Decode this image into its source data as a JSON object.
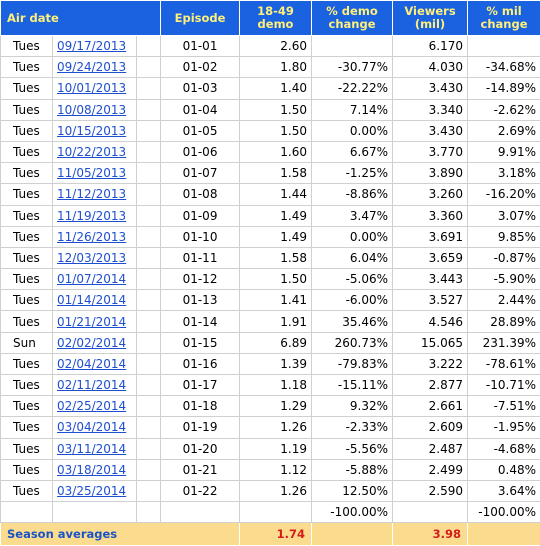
{
  "header": {
    "air_date": "Air date",
    "episode": "Episode",
    "demo_line1": "18-49",
    "demo_line2": "demo",
    "demo_change_line1": "% demo",
    "demo_change_line2": "change",
    "viewers_line1": "Viewers",
    "viewers_line2": "(mil)",
    "viewers_change_line1": "% mil",
    "viewers_change_line2": "change"
  },
  "rows": [
    {
      "day": "Tues",
      "date": "09/17/2013",
      "episode": "01-01",
      "demo": "2.60",
      "demo_change": "",
      "viewers": "6.170",
      "viewers_change": ""
    },
    {
      "day": "Tues",
      "date": "09/24/2013",
      "episode": "01-02",
      "demo": "1.80",
      "demo_change": "-30.77%",
      "viewers": "4.030",
      "viewers_change": "-34.68%"
    },
    {
      "day": "Tues",
      "date": "10/01/2013",
      "episode": "01-03",
      "demo": "1.40",
      "demo_change": "-22.22%",
      "viewers": "3.430",
      "viewers_change": "-14.89%"
    },
    {
      "day": "Tues",
      "date": "10/08/2013",
      "episode": "01-04",
      "demo": "1.50",
      "demo_change": "7.14%",
      "viewers": "3.340",
      "viewers_change": "-2.62%"
    },
    {
      "day": "Tues",
      "date": "10/15/2013",
      "episode": "01-05",
      "demo": "1.50",
      "demo_change": "0.00%",
      "viewers": "3.430",
      "viewers_change": "2.69%"
    },
    {
      "day": "Tues",
      "date": "10/22/2013",
      "episode": "01-06",
      "demo": "1.60",
      "demo_change": "6.67%",
      "viewers": "3.770",
      "viewers_change": "9.91%"
    },
    {
      "day": "Tues",
      "date": "11/05/2013",
      "episode": "01-07",
      "demo": "1.58",
      "demo_change": "-1.25%",
      "viewers": "3.890",
      "viewers_change": "3.18%"
    },
    {
      "day": "Tues",
      "date": "11/12/2013",
      "episode": "01-08",
      "demo": "1.44",
      "demo_change": "-8.86%",
      "viewers": "3.260",
      "viewers_change": "-16.20%"
    },
    {
      "day": "Tues",
      "date": "11/19/2013",
      "episode": "01-09",
      "demo": "1.49",
      "demo_change": "3.47%",
      "viewers": "3.360",
      "viewers_change": "3.07%"
    },
    {
      "day": "Tues",
      "date": "11/26/2013",
      "episode": "01-10",
      "demo": "1.49",
      "demo_change": "0.00%",
      "viewers": "3.691",
      "viewers_change": "9.85%"
    },
    {
      "day": "Tues",
      "date": "12/03/2013",
      "episode": "01-11",
      "demo": "1.58",
      "demo_change": "6.04%",
      "viewers": "3.659",
      "viewers_change": "-0.87%"
    },
    {
      "day": "Tues",
      "date": "01/07/2014",
      "episode": "01-12",
      "demo": "1.50",
      "demo_change": "-5.06%",
      "viewers": "3.443",
      "viewers_change": "-5.90%"
    },
    {
      "day": "Tues",
      "date": "01/14/2014",
      "episode": "01-13",
      "demo": "1.41",
      "demo_change": "-6.00%",
      "viewers": "3.527",
      "viewers_change": "2.44%"
    },
    {
      "day": "Tues",
      "date": "01/21/2014",
      "episode": "01-14",
      "demo": "1.91",
      "demo_change": "35.46%",
      "viewers": "4.546",
      "viewers_change": "28.89%"
    },
    {
      "day": "Sun",
      "date": "02/02/2014",
      "episode": "01-15",
      "demo": "6.89",
      "demo_change": "260.73%",
      "viewers": "15.065",
      "viewers_change": "231.39%"
    },
    {
      "day": "Tues",
      "date": "02/04/2014",
      "episode": "01-16",
      "demo": "1.39",
      "demo_change": "-79.83%",
      "viewers": "3.222",
      "viewers_change": "-78.61%"
    },
    {
      "day": "Tues",
      "date": "02/11/2014",
      "episode": "01-17",
      "demo": "1.18",
      "demo_change": "-15.11%",
      "viewers": "2.877",
      "viewers_change": "-10.71%"
    },
    {
      "day": "Tues",
      "date": "02/25/2014",
      "episode": "01-18",
      "demo": "1.29",
      "demo_change": "9.32%",
      "viewers": "2.661",
      "viewers_change": "-7.51%"
    },
    {
      "day": "Tues",
      "date": "03/04/2014",
      "episode": "01-19",
      "demo": "1.26",
      "demo_change": "-2.33%",
      "viewers": "2.609",
      "viewers_change": "-1.95%"
    },
    {
      "day": "Tues",
      "date": "03/11/2014",
      "episode": "01-20",
      "demo": "1.19",
      "demo_change": "-5.56%",
      "viewers": "2.487",
      "viewers_change": "-4.68%"
    },
    {
      "day": "Tues",
      "date": "03/18/2014",
      "episode": "01-21",
      "demo": "1.12",
      "demo_change": "-5.88%",
      "viewers": "2.499",
      "viewers_change": "0.48%"
    },
    {
      "day": "Tues",
      "date": "03/25/2014",
      "episode": "01-22",
      "demo": "1.26",
      "demo_change": "12.50%",
      "viewers": "2.590",
      "viewers_change": "3.64%"
    },
    {
      "day": "",
      "date": "",
      "episode": "",
      "demo": "",
      "demo_change": "-100.00%",
      "viewers": "",
      "viewers_change": "-100.00%"
    }
  ],
  "footer": {
    "label": "Season averages",
    "demo_avg": "1.74",
    "viewers_avg": "3.98"
  },
  "colors": {
    "header_bg": "#1a62df",
    "header_text": "#fff07a",
    "footer_bg": "#fbdc8e",
    "footer_label": "#1a53c8",
    "footer_value": "#d41c1c",
    "link": "#1f4fd1"
  }
}
